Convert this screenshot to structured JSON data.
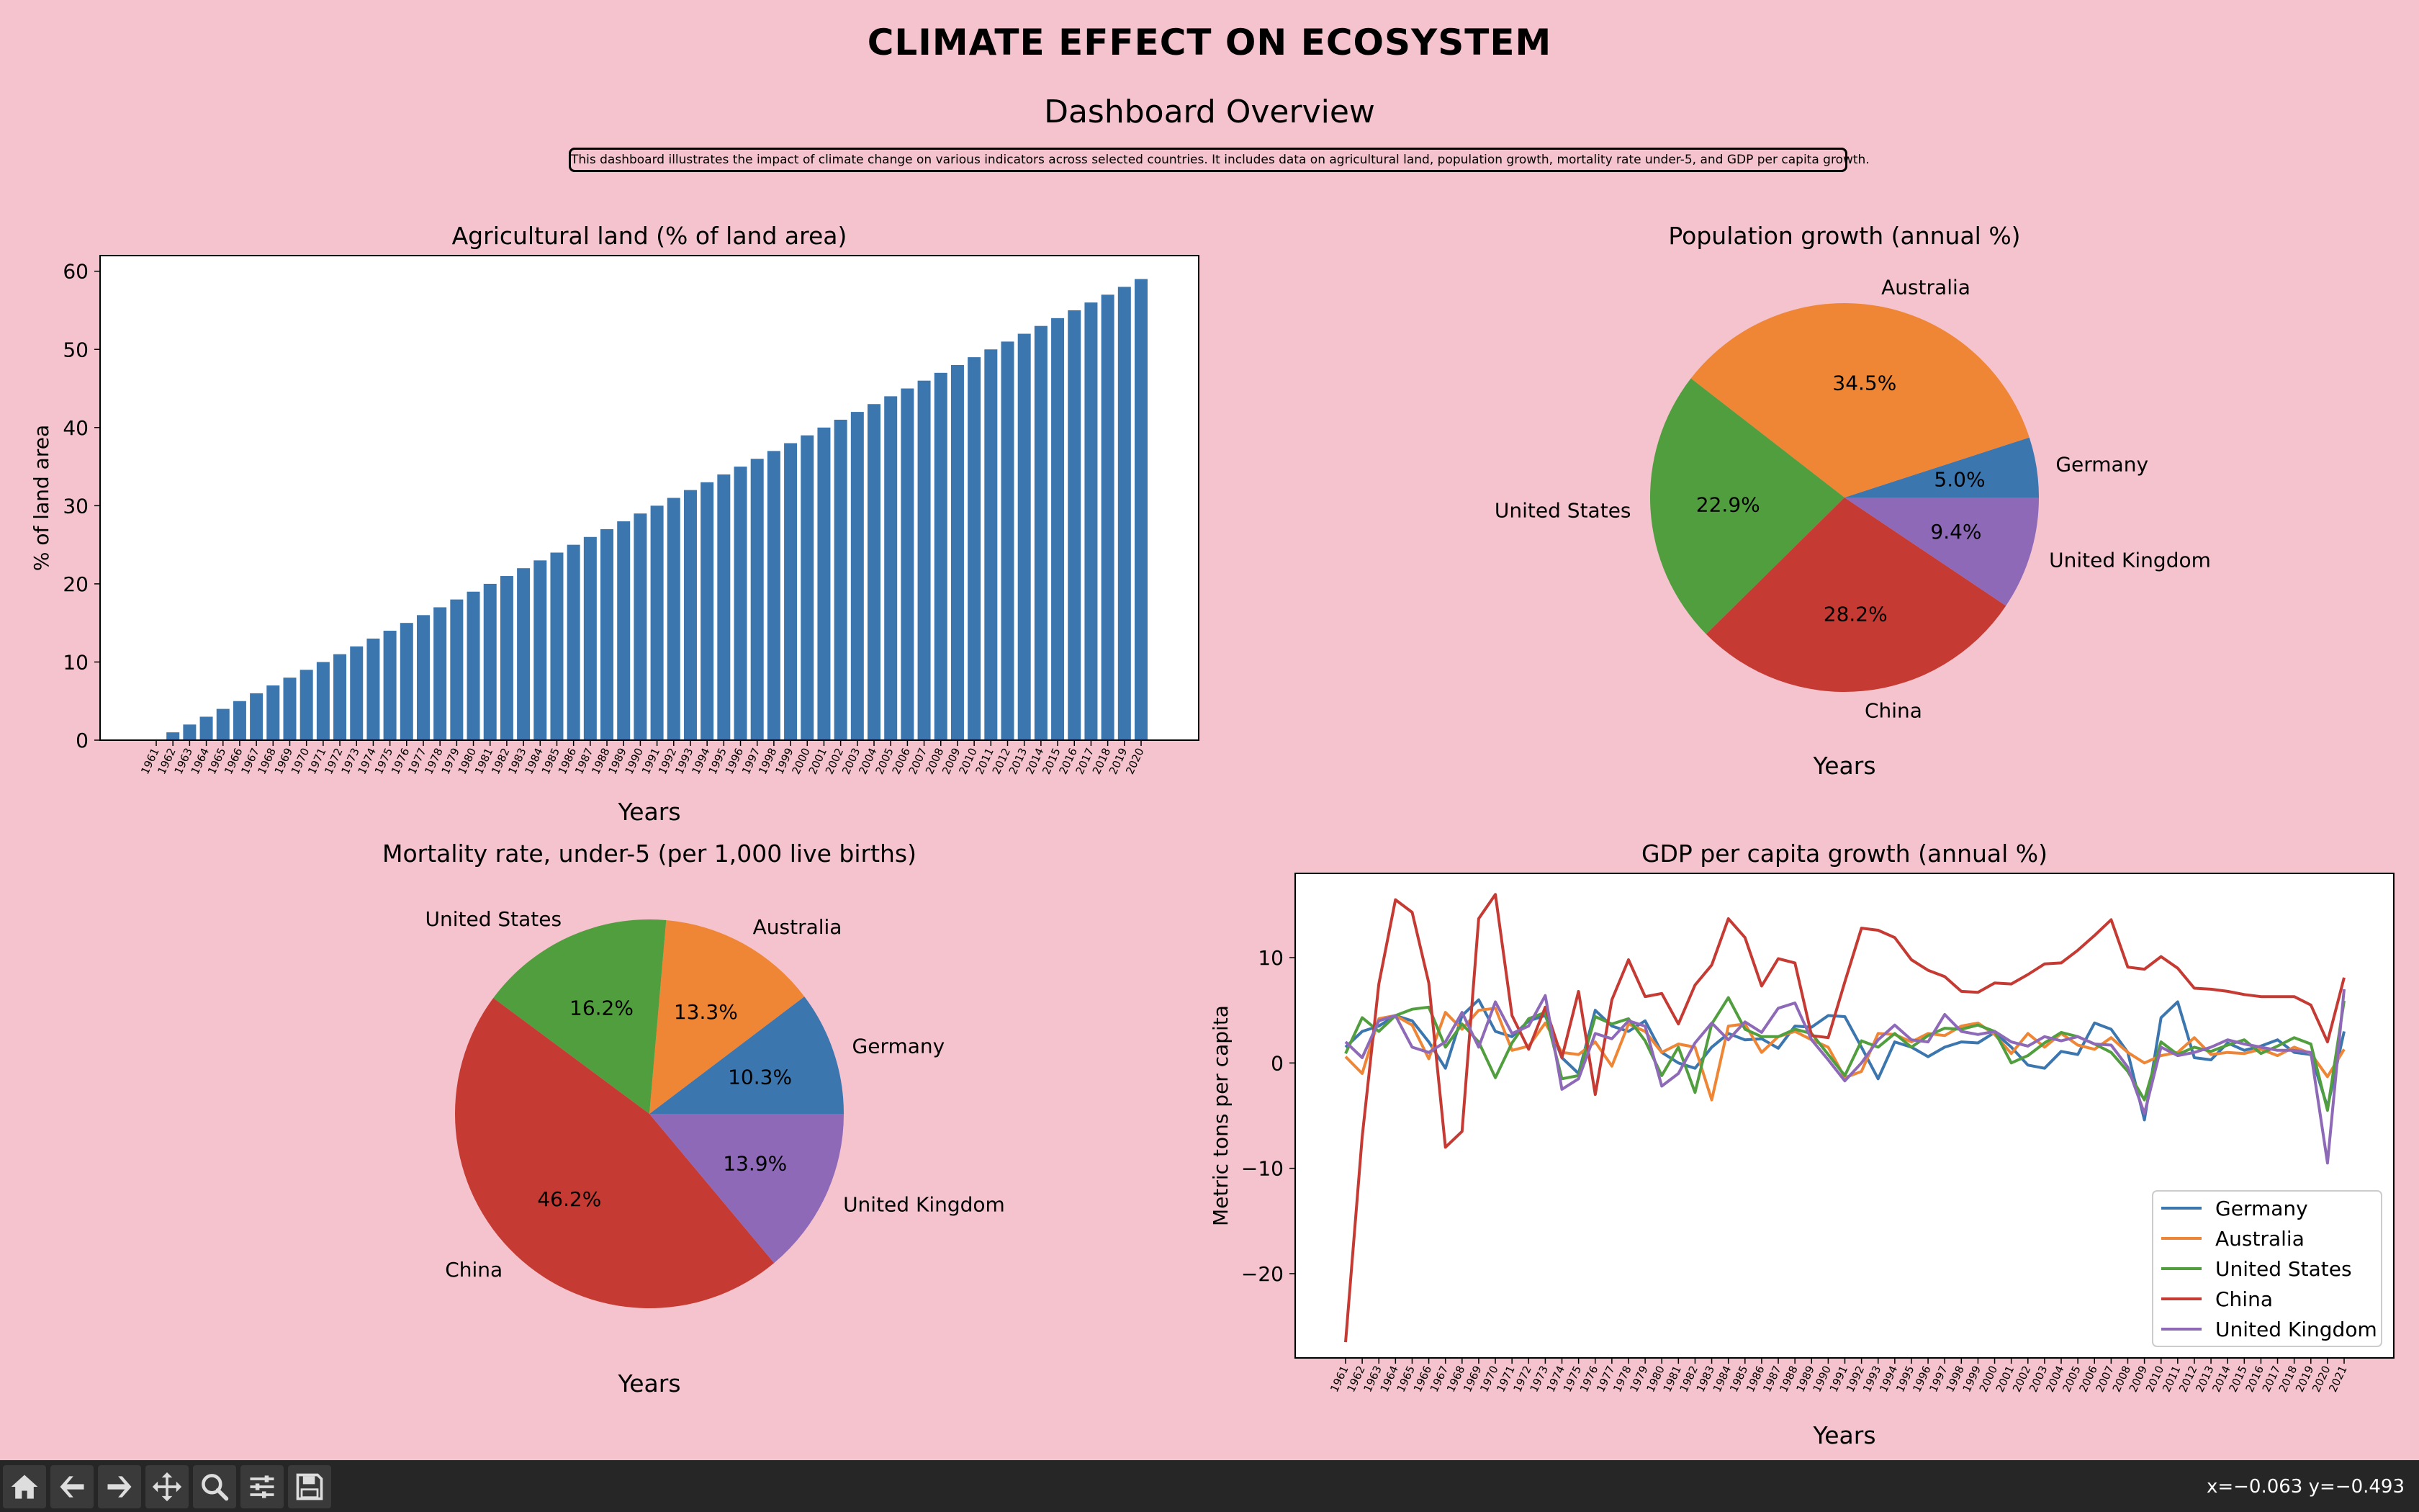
{
  "title": "CLIMATE EFFECT ON ECOSYSTEM",
  "subtitle": "Dashboard Overview",
  "description": "This dashboard illustrates the impact of climate change on various indicators across selected countries. It includes data on agricultural land, population growth, mortality rate under-5, and GDP per capita growth.",
  "colors": {
    "background": "#f5c3cd",
    "Germany": "#3b76af",
    "Australia": "#ef8636",
    "United States": "#519e3e",
    "China": "#c53a32",
    "United Kingdom": "#8d69b8"
  },
  "status_readout": "x=−0.063 y=−0.493",
  "toolbar": [
    "home-icon",
    "back-icon",
    "forward-icon",
    "pan-icon",
    "zoom-icon",
    "configure-icon",
    "save-icon"
  ],
  "chart_data": [
    {
      "type": "bar",
      "title": "Agricultural land (% of land area)",
      "xlabel": "Years",
      "ylabel": "% of land area",
      "ylim": [
        0,
        62
      ],
      "yticks": [
        0,
        10,
        20,
        30,
        40,
        50,
        60
      ],
      "categories": [
        "1961",
        "1962",
        "1963",
        "1964",
        "1965",
        "1966",
        "1967",
        "1968",
        "1969",
        "1970",
        "1971",
        "1972",
        "1973",
        "1974",
        "1975",
        "1976",
        "1977",
        "1978",
        "1979",
        "1980",
        "1981",
        "1982",
        "1983",
        "1984",
        "1985",
        "1986",
        "1987",
        "1988",
        "1989",
        "1990",
        "1991",
        "1992",
        "1993",
        "1994",
        "1995",
        "1996",
        "1997",
        "1998",
        "1999",
        "2000",
        "2001",
        "2002",
        "2003",
        "2004",
        "2005",
        "2006",
        "2007",
        "2008",
        "2009",
        "2010",
        "2011",
        "2012",
        "2013",
        "2014",
        "2015",
        "2016",
        "2017",
        "2018",
        "2019",
        "2020"
      ],
      "values": [
        0,
        1,
        2,
        3,
        4,
        5,
        6,
        7,
        8,
        9,
        10,
        11,
        12,
        13,
        14,
        15,
        16,
        17,
        18,
        19,
        20,
        21,
        22,
        23,
        24,
        25,
        26,
        27,
        28,
        29,
        30,
        31,
        32,
        33,
        34,
        35,
        36,
        37,
        38,
        39,
        40,
        41,
        42,
        43,
        44,
        45,
        46,
        47,
        48,
        49,
        50,
        51,
        52,
        53,
        54,
        55,
        56,
        57,
        58,
        59
      ]
    },
    {
      "type": "pie",
      "title": "Population growth (annual %)",
      "xlabel": "Years",
      "labels": [
        "Germany",
        "Australia",
        "United States",
        "China",
        "United Kingdom"
      ],
      "values": [
        5.0,
        34.5,
        22.9,
        28.2,
        9.4
      ],
      "pct_labels": [
        "5.0%",
        "34.5%",
        "22.9%",
        "28.2%",
        "9.4%"
      ]
    },
    {
      "type": "pie",
      "title": "Mortality rate, under-5 (per 1,000 live births)",
      "xlabel": "Years",
      "labels": [
        "Germany",
        "Australia",
        "United States",
        "China",
        "United Kingdom"
      ],
      "values": [
        10.3,
        13.3,
        16.2,
        46.2,
        13.9
      ],
      "pct_labels": [
        "10.3%",
        "13.3%",
        "16.2%",
        "46.2%",
        "13.9%"
      ]
    },
    {
      "type": "line",
      "title": "GDP per capita growth (annual %)",
      "xlabel": "Years",
      "ylabel": "Metric tons per capita",
      "ylim": [
        -28,
        18
      ],
      "yticks": [
        -20,
        -10,
        0,
        10
      ],
      "x": [
        "1961",
        "1962",
        "1963",
        "1964",
        "1965",
        "1966",
        "1967",
        "1968",
        "1969",
        "1970",
        "1971",
        "1972",
        "1973",
        "1974",
        "1975",
        "1976",
        "1977",
        "1978",
        "1979",
        "1980",
        "1981",
        "1982",
        "1983",
        "1984",
        "1985",
        "1986",
        "1987",
        "1988",
        "1989",
        "1990",
        "1991",
        "1992",
        "1993",
        "1994",
        "1995",
        "1996",
        "1997",
        "1998",
        "1999",
        "2000",
        "2001",
        "2002",
        "2003",
        "2004",
        "2005",
        "2006",
        "2007",
        "2008",
        "2009",
        "2010",
        "2011",
        "2012",
        "2013",
        "2014",
        "2015",
        "2016",
        "2017",
        "2018",
        "2019",
        "2020",
        "2021"
      ],
      "legend_location": "lower-right",
      "series": [
        {
          "name": "Germany",
          "values": [
            1.5,
            3.0,
            3.5,
            4.5,
            4.0,
            2.0,
            -0.5,
            4.5,
            6.0,
            3.0,
            2.5,
            4.0,
            4.5,
            0.5,
            -1.0,
            5.0,
            3.5,
            3.0,
            4.0,
            1.0,
            0.0,
            -0.5,
            1.5,
            2.8,
            2.2,
            2.3,
            1.4,
            3.5,
            3.4,
            4.5,
            4.4,
            1.5,
            -1.5,
            2.0,
            1.5,
            0.6,
            1.5,
            2.0,
            1.9,
            2.9,
            1.5,
            -0.2,
            -0.5,
            1.1,
            0.8,
            3.8,
            3.2,
            1.0,
            -5.4,
            4.3,
            5.8,
            0.5,
            0.3,
            1.9,
            1.2,
            1.6,
            2.2,
            1.0,
            0.8,
            -4.2,
            3.0
          ]
        },
        {
          "name": "Australia",
          "values": [
            0.6,
            -1.0,
            4.2,
            4.5,
            3.6,
            0.4,
            4.8,
            3.2,
            5.0,
            5.2,
            1.2,
            1.6,
            3.8,
            1.0,
            0.8,
            2.0,
            -0.3,
            3.7,
            3.0,
            1.0,
            1.8,
            1.5,
            -3.5,
            3.5,
            3.7,
            1.0,
            2.5,
            3.0,
            2.2,
            1.5,
            -1.4,
            -0.8,
            2.8,
            2.7,
            2.0,
            2.8,
            2.6,
            3.5,
            3.8,
            2.7,
            0.9,
            2.8,
            1.5,
            2.8,
            1.7,
            1.3,
            2.4,
            1.0,
            0.0,
            0.7,
            1.0,
            2.4,
            0.8,
            1.0,
            0.9,
            1.3,
            0.7,
            1.5,
            0.9,
            -1.3,
            1.3
          ]
        },
        {
          "name": "United States",
          "values": [
            0.9,
            4.3,
            3.0,
            4.5,
            5.1,
            5.3,
            1.5,
            3.7,
            2.0,
            -1.4,
            1.9,
            4.2,
            4.8,
            -1.5,
            -1.2,
            4.4,
            3.7,
            4.2,
            2.1,
            -1.2,
            1.5,
            -2.8,
            3.7,
            6.2,
            3.2,
            2.5,
            2.5,
            3.2,
            2.8,
            0.8,
            -1.2,
            2.1,
            1.5,
            2.8,
            1.5,
            2.6,
            3.3,
            3.2,
            3.6,
            3.0,
            0.0,
            0.7,
            1.9,
            2.9,
            2.5,
            1.8,
            1.0,
            -0.8,
            -3.5,
            2.0,
            0.8,
            1.5,
            1.1,
            1.7,
            2.2,
            0.9,
            1.6,
            2.4,
            1.8,
            -4.5,
            5.9
          ]
        },
        {
          "name": "China",
          "values": [
            -26.5,
            -7.0,
            7.5,
            15.5,
            14.3,
            7.6,
            -8.0,
            -6.5,
            13.7,
            16.0,
            4.5,
            1.3,
            5.3,
            0.5,
            6.8,
            -3.0,
            6.0,
            9.8,
            6.3,
            6.6,
            3.7,
            7.4,
            9.3,
            13.7,
            11.9,
            7.3,
            9.9,
            9.5,
            2.6,
            2.4,
            7.7,
            12.8,
            12.6,
            11.9,
            9.8,
            8.8,
            8.2,
            6.8,
            6.7,
            7.6,
            7.5,
            8.4,
            9.4,
            9.5,
            10.7,
            12.1,
            13.6,
            9.1,
            8.9,
            10.1,
            9.0,
            7.1,
            7.0,
            6.8,
            6.5,
            6.3,
            6.3,
            6.3,
            5.5,
            2.0,
            8.1
          ]
        },
        {
          "name": "United Kingdom",
          "values": [
            2.0,
            0.5,
            4.0,
            4.5,
            1.5,
            1.0,
            2.0,
            4.8,
            1.5,
            5.8,
            2.8,
            3.5,
            6.4,
            -2.5,
            -1.5,
            2.8,
            2.3,
            4.0,
            3.5,
            -2.2,
            -1.0,
            1.9,
            3.8,
            2.2,
            3.9,
            2.9,
            5.2,
            5.7,
            2.2,
            0.3,
            -1.7,
            0.0,
            2.2,
            3.6,
            2.2,
            2.0,
            4.6,
            3.0,
            2.7,
            3.0,
            2.0,
            1.6,
            2.5,
            2.1,
            2.5,
            1.8,
            1.7,
            -0.4,
            -4.8,
            1.5,
            0.7,
            1.0,
            1.5,
            2.2,
            1.8,
            1.5,
            1.2,
            1.2,
            1.0,
            -9.5,
            7.0
          ]
        }
      ]
    }
  ]
}
